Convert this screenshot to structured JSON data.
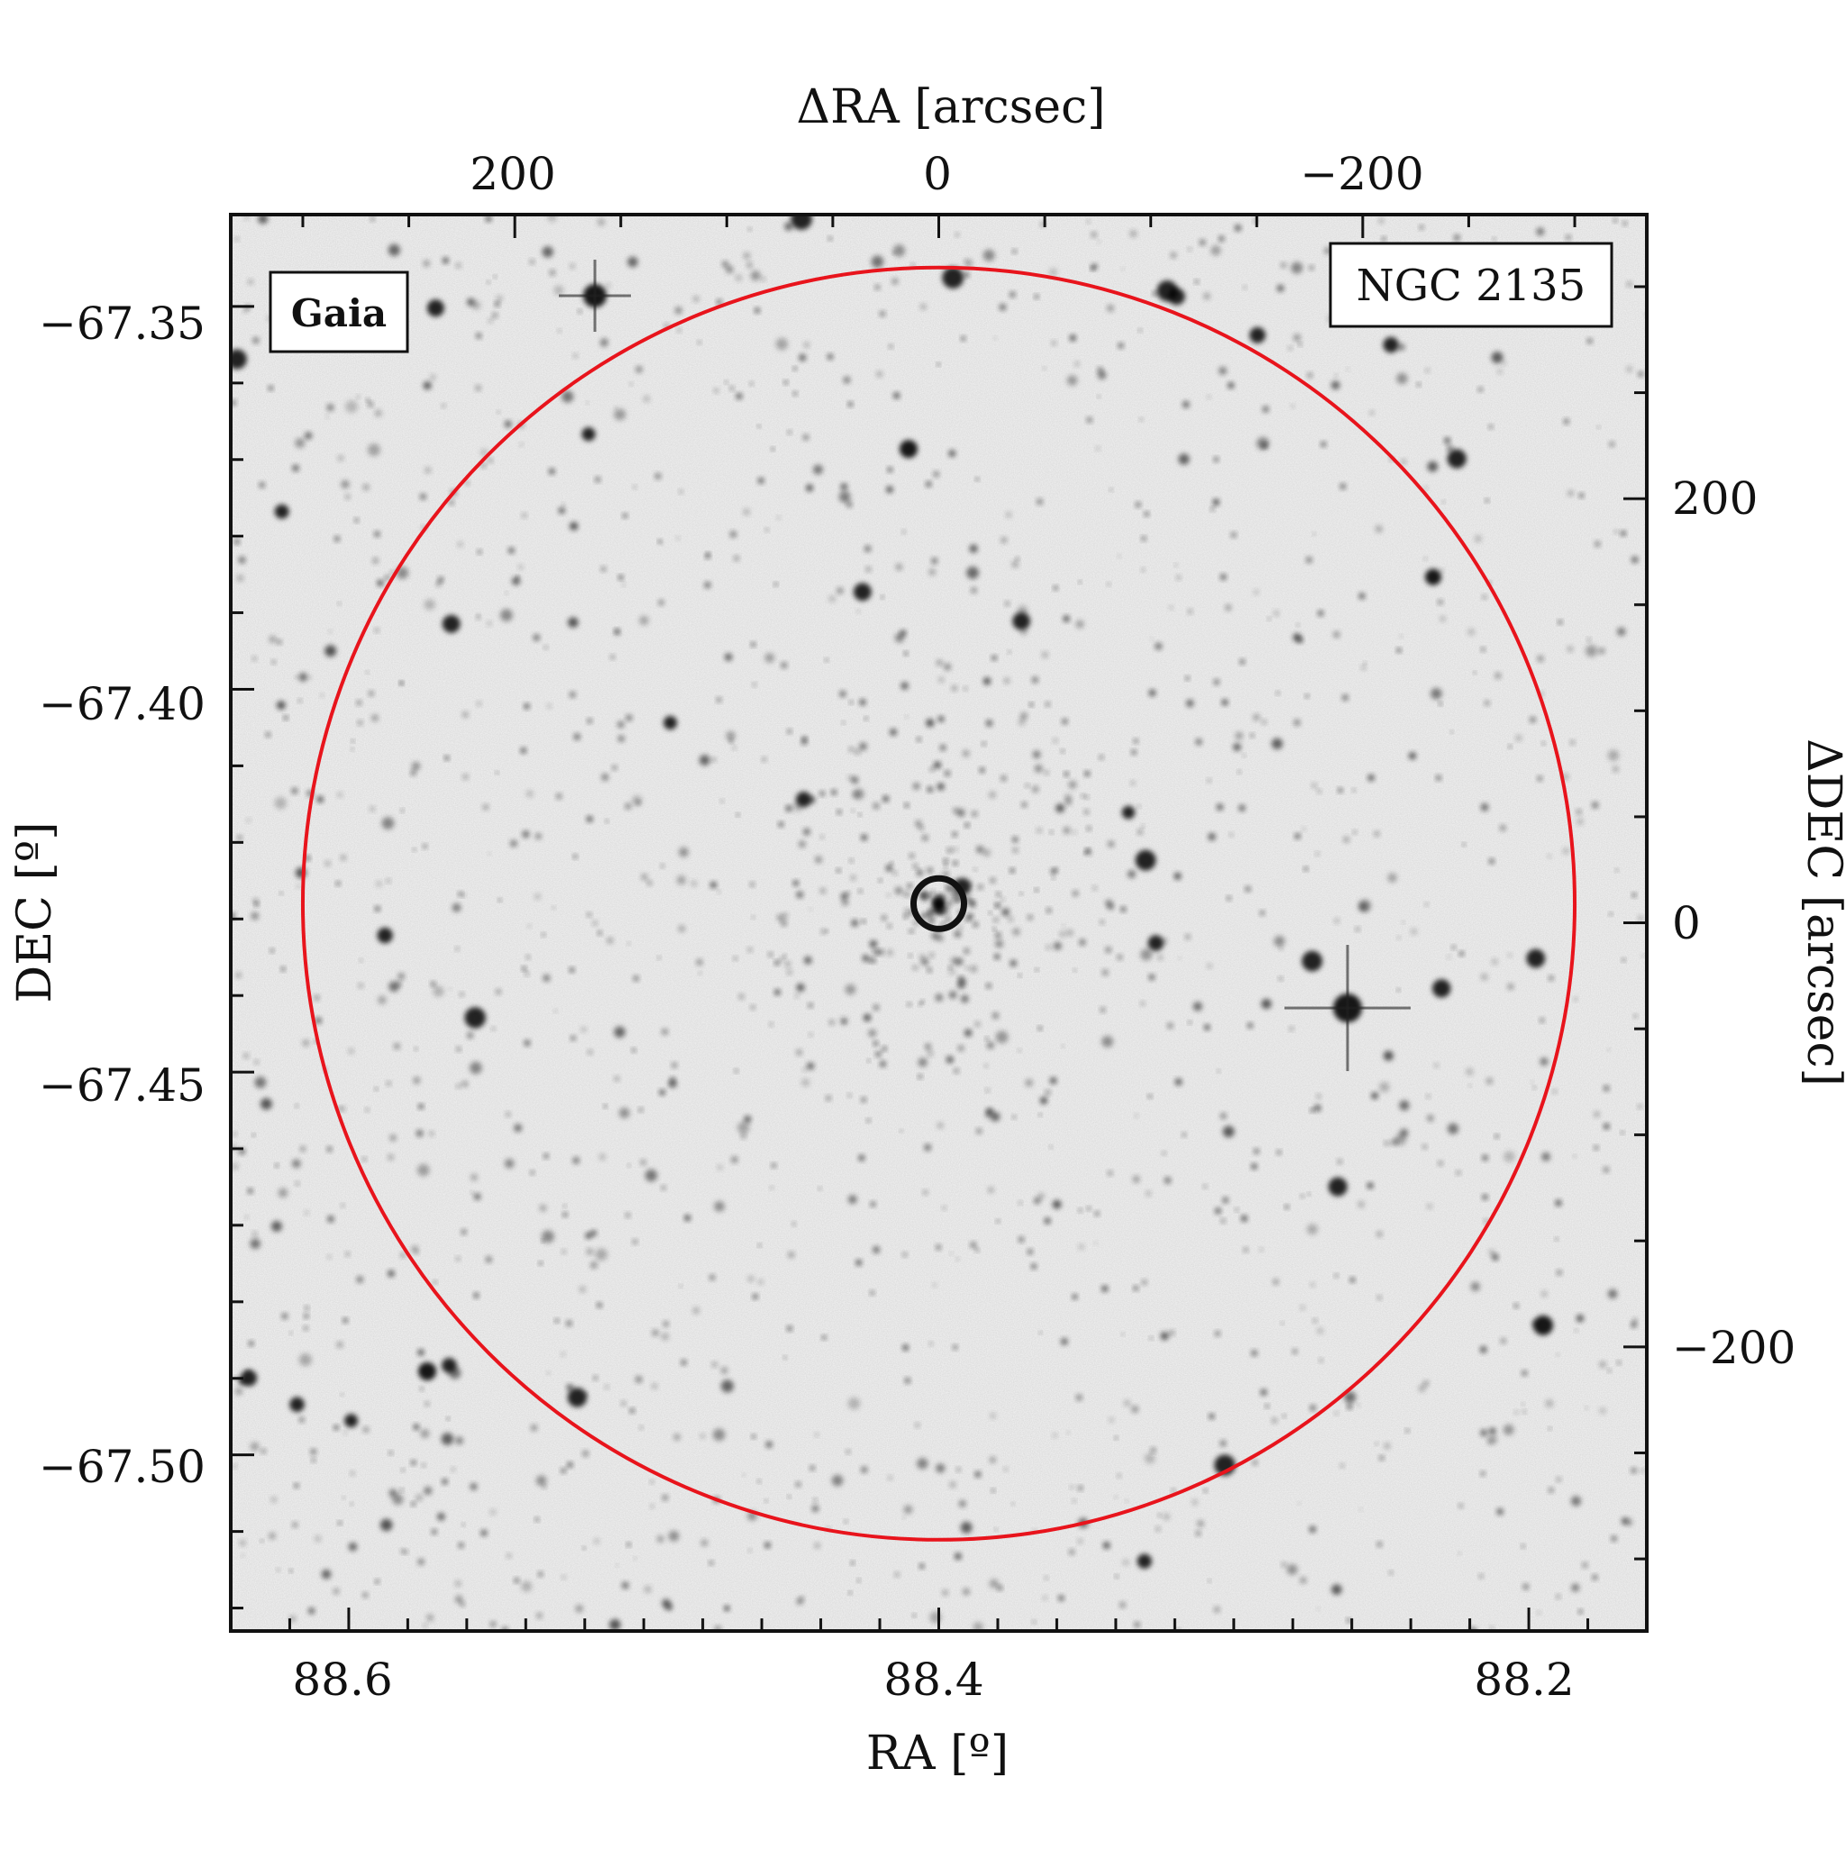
{
  "chart_data": {
    "type": "scatter",
    "image_kind": "grayscale sky image (inverted)",
    "axes": {
      "bottom": {
        "label": "RA [º]",
        "ticks": [
          "88.6",
          "88.4",
          "88.2"
        ],
        "tick_values": [
          88.6,
          88.4,
          88.2
        ],
        "range": [
          88.64,
          88.16
        ]
      },
      "left": {
        "label": "DEC [º]",
        "ticks": [
          "−67.35",
          "−67.40",
          "−67.45",
          "−67.50"
        ],
        "tick_values": [
          -67.35,
          -67.4,
          -67.45,
          -67.5
        ],
        "range": [
          -67.523,
          -67.338
        ]
      },
      "top": {
        "label": "ΔRA [arcsec]",
        "ticks": [
          "200",
          "0",
          "−200"
        ],
        "tick_values": [
          200,
          0,
          -200
        ],
        "range": [
          334,
          -334
        ]
      },
      "right": {
        "label": "ΔDEC [arcsec]",
        "ticks": [
          "200",
          "0",
          "−200"
        ],
        "tick_values": [
          200,
          0,
          -200
        ],
        "range": [
          -334,
          334
        ]
      }
    },
    "legend": {
      "text": "Gaia",
      "color": "#e8141c",
      "position": "top-left"
    },
    "annotation": {
      "text": "NGC 2135",
      "position": "top-right"
    },
    "cluster_center": {
      "ra": 88.4,
      "dec": -67.428
    },
    "cluster_radius_arcsec": 300,
    "circle_color": "#e8141c",
    "center_marker_color": "#111111",
    "grid": false
  }
}
